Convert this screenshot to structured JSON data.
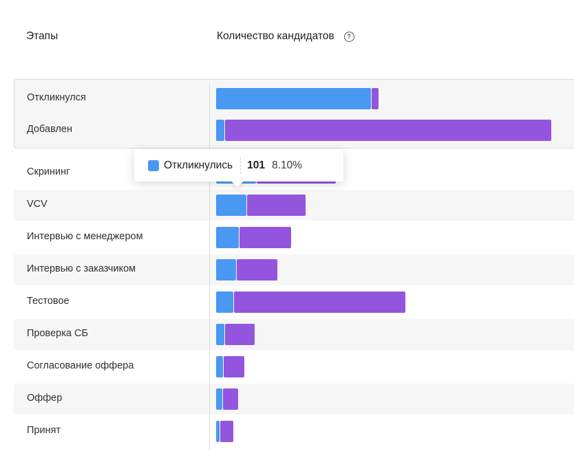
{
  "header": {
    "stages_label": "Этапы",
    "count_label": "Количество кандидатов",
    "help_icon_glyph": "?"
  },
  "tooltip": {
    "series_label": "Откликнулись",
    "count": "101",
    "percent": "8.10%",
    "color": "#4a98f1"
  },
  "chart_data": {
    "type": "bar",
    "orientation": "horizontal",
    "stacked": true,
    "categories": [
      "Откликнулся",
      "Добавлен",
      "Скрининг",
      "VCV",
      "Интервью с менеджером",
      "Интервью с заказчиком",
      "Тестовое",
      "Проверка СБ",
      "Согласование оффера",
      "Оффер",
      "Принят"
    ],
    "series": [
      {
        "color": "#4a98f1",
        "values": [
          225,
          12,
          58,
          44,
          33,
          29,
          25,
          12,
          10,
          9,
          5
        ]
      },
      {
        "color": "#9355dd",
        "values": [
          10,
          474,
          115,
          85,
          75,
          59,
          249,
          43,
          30,
          22,
          19
        ]
      }
    ],
    "xlim": [
      0,
      520
    ],
    "grouped_rows": [
      "Откликнулся",
      "Добавлен"
    ],
    "striped_rows": [
      "VCV",
      "Интервью с заказчиком",
      "Проверка СБ",
      "Оффер"
    ],
    "legend": "none",
    "grid": false
  }
}
